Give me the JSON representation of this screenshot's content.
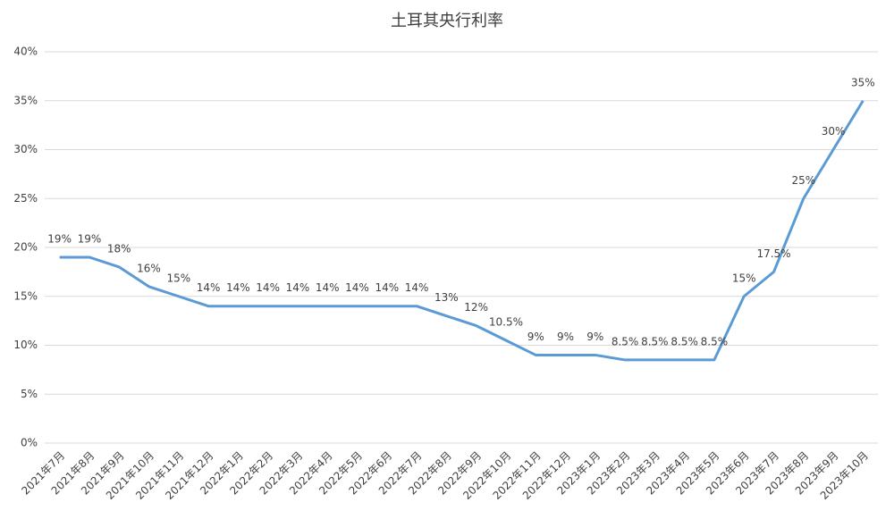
{
  "chart_data": {
    "type": "line",
    "title": "土耳其央行利率",
    "categories": [
      "2021年7月",
      "2021年8月",
      "2021年9月",
      "2021年10月",
      "2021年11月",
      "2021年12月",
      "2022年1月",
      "2022年2月",
      "2022年3月",
      "2022年4月",
      "2022年5月",
      "2022年6月",
      "2022年7月",
      "2022年8月",
      "2022年9月",
      "2022年10月",
      "2022年11月",
      "2022年12月",
      "2023年1月",
      "2023年2月",
      "2023年3月",
      "2023年4月",
      "2023年5月",
      "2023年6月",
      "2023年7月",
      "2023年8月",
      "2023年9月",
      "2023年10月"
    ],
    "series": [
      {
        "color": "#5b9bd5",
        "values": [
          19,
          19,
          18,
          16,
          15,
          14,
          14,
          14,
          14,
          14,
          14,
          14,
          14,
          13,
          12,
          10.5,
          9,
          9,
          9,
          8.5,
          8.5,
          8.5,
          8.5,
          15,
          17.5,
          25,
          30,
          35
        ],
        "value_labels": [
          "19%",
          "19%",
          "18%",
          "16%",
          "15%",
          "14%",
          "14%",
          "14%",
          "14%",
          "14%",
          "14%",
          "14%",
          "14%",
          "13%",
          "12%",
          "10.5%",
          "9%",
          "9%",
          "9%",
          "8.5%",
          "8.5%",
          "8.5%",
          "8.5%",
          "15%",
          "17.5%",
          "25%",
          "30%",
          "35%"
        ]
      }
    ],
    "ylim": [
      0,
      40
    ],
    "yticks": [
      {
        "value": 0,
        "label": "0%"
      },
      {
        "value": 5,
        "label": "5%"
      },
      {
        "value": 10,
        "label": "10%"
      },
      {
        "value": 15,
        "label": "15%"
      },
      {
        "value": 20,
        "label": "20%"
      },
      {
        "value": 25,
        "label": "25%"
      },
      {
        "value": 30,
        "label": "30%"
      },
      {
        "value": 35,
        "label": "35%"
      },
      {
        "value": 40,
        "label": "40%"
      }
    ],
    "grid": true
  }
}
